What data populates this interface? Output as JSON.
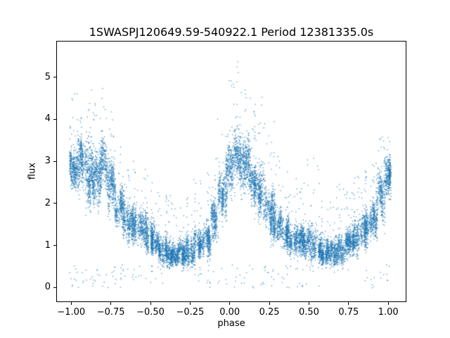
{
  "figure": {
    "title": "1SWASPJ120649.59-540922.1 Period 12381335.0s",
    "xlabel": "phase",
    "ylabel": "flux"
  },
  "chart_data": {
    "type": "scatter",
    "title": "1SWASPJ120649.59-540922.1 Period 12381335.0s",
    "xlabel": "phase",
    "ylabel": "flux",
    "marker_color": "#1f77b4",
    "marker_size_px": 1,
    "grid": false,
    "xlim": [
      -1.09,
      1.11
    ],
    "ylim": [
      -0.33,
      5.85
    ],
    "xticks": [
      -1.0,
      -0.75,
      -0.5,
      -0.25,
      0.0,
      0.25,
      0.5,
      0.75,
      1.0
    ],
    "xtick_labels": [
      "−1.00",
      "−0.75",
      "−0.50",
      "−0.25",
      "0.00",
      "0.25",
      "0.50",
      "0.75",
      "1.00"
    ],
    "yticks": [
      0,
      1,
      2,
      3,
      4,
      5
    ],
    "ytick_labels": [
      "0",
      "1",
      "2",
      "3",
      "4",
      "5"
    ],
    "description": "Phase-folded light curve: dense scatter of many thousands of small blue points arranged in vertical streaks. Flux peaks (~3, outliers to ~5.5) near phase -1.0/-0.8, 0.0-0.1, and +1.0; dips (~0.8) near phase -0.35 and +0.6.",
    "profile": {
      "phase": [
        -1.0,
        -0.95,
        -0.9,
        -0.85,
        -0.8,
        -0.75,
        -0.7,
        -0.65,
        -0.6,
        -0.55,
        -0.5,
        -0.45,
        -0.4,
        -0.35,
        -0.3,
        -0.25,
        -0.2,
        -0.15,
        -0.1,
        -0.05,
        0.0,
        0.05,
        0.1,
        0.15,
        0.2,
        0.25,
        0.3,
        0.35,
        0.4,
        0.45,
        0.5,
        0.55,
        0.6,
        0.65,
        0.7,
        0.75,
        0.8,
        0.85,
        0.9,
        0.95,
        1.0
      ],
      "flux_mean": [
        2.9,
        3.0,
        2.8,
        2.6,
        2.8,
        2.4,
        1.9,
        1.6,
        1.5,
        1.4,
        1.2,
        1.0,
        0.85,
        0.8,
        0.8,
        0.9,
        1.1,
        1.2,
        1.6,
        2.2,
        2.9,
        3.2,
        2.9,
        2.4,
        2.2,
        1.8,
        1.5,
        1.3,
        1.2,
        1.1,
        1.1,
        1.0,
        0.85,
        0.8,
        0.9,
        1.0,
        1.2,
        1.4,
        1.6,
        2.2,
        2.7
      ],
      "flux_halfspread": [
        0.5,
        0.7,
        0.8,
        0.7,
        0.8,
        0.6,
        0.5,
        0.5,
        0.5,
        0.45,
        0.4,
        0.35,
        0.35,
        0.3,
        0.35,
        0.4,
        0.4,
        0.45,
        0.5,
        0.6,
        0.7,
        0.8,
        0.7,
        0.6,
        0.7,
        0.6,
        0.5,
        0.45,
        0.4,
        0.4,
        0.45,
        0.4,
        0.35,
        0.35,
        0.4,
        0.4,
        0.45,
        0.45,
        0.5,
        0.6,
        0.5
      ],
      "flux_max": [
        5.0,
        5.5,
        5.2,
        4.6,
        5.0,
        4.2,
        3.4,
        3.2,
        3.3,
        3.0,
        2.8,
        2.4,
        2.2,
        2.0,
        2.2,
        2.4,
        2.6,
        2.8,
        3.2,
        4.2,
        5.0,
        5.5,
        4.8,
        4.4,
        4.6,
        4.0,
        3.2,
        2.8,
        2.6,
        2.6,
        3.1,
        2.9,
        2.4,
        2.2,
        2.5,
        2.5,
        2.7,
        2.8,
        3.0,
        3.6,
        3.6
      ]
    }
  }
}
